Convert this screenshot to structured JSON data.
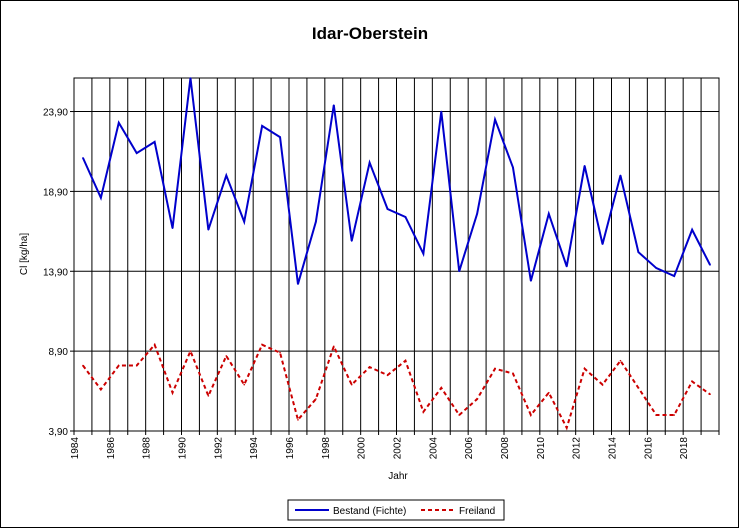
{
  "chart_data": {
    "type": "line",
    "title": "Idar-Oberstein",
    "xlabel": "Jahr",
    "ylabel": "Cl [kg/ha]",
    "ylim": [
      3.9,
      26.0
    ],
    "yticks": [
      3.9,
      8.9,
      13.9,
      18.9,
      23.9
    ],
    "ytick_labels": [
      "3,90",
      "8,90",
      "13,90",
      "18,90",
      "23,90"
    ],
    "xlim": [
      1984,
      2019
    ],
    "xtick_labels": [
      "1984",
      "1986",
      "1988",
      "1990",
      "1992",
      "1994",
      "1996",
      "1998",
      "2000",
      "2002",
      "2004",
      "2006",
      "2008",
      "2010",
      "2012",
      "2014",
      "2016",
      "2018"
    ],
    "grid": true,
    "legend_position": "bottom",
    "x": [
      1984,
      1985,
      1986,
      1987,
      1988,
      1989,
      1990,
      1991,
      1992,
      1993,
      1994,
      1995,
      1996,
      1997,
      1998,
      1999,
      2000,
      2001,
      2002,
      2003,
      2004,
      2005,
      2006,
      2007,
      2008,
      2009,
      2010,
      2011,
      2012,
      2013,
      2014,
      2015,
      2016,
      2017,
      2018,
      2019
    ],
    "series": [
      {
        "name": "Bestand (Fichte)",
        "color": "#0000cc",
        "style": "solid",
        "values": [
          21.0,
          18.5,
          23.2,
          21.3,
          22.0,
          16.6,
          26.0,
          16.5,
          19.9,
          17.0,
          23.0,
          22.3,
          13.1,
          17.0,
          24.3,
          15.8,
          20.7,
          17.8,
          17.3,
          15.0,
          23.9,
          13.9,
          17.5,
          23.4,
          20.4,
          13.3,
          17.5,
          14.2,
          20.5,
          15.6,
          19.9,
          15.1,
          14.1,
          13.6,
          16.5,
          14.3
        ]
      },
      {
        "name": "Freiland",
        "color": "#cc0000",
        "style": "dashed",
        "values": [
          8.0,
          6.5,
          8.0,
          8.0,
          9.3,
          6.3,
          8.9,
          6.1,
          8.6,
          6.8,
          9.3,
          8.8,
          4.6,
          5.9,
          9.2,
          6.8,
          7.9,
          7.4,
          8.3,
          5.1,
          6.6,
          4.9,
          5.9,
          7.8,
          7.5,
          4.9,
          6.3,
          4.1,
          7.8,
          6.8,
          8.3,
          6.6,
          4.9,
          4.9,
          7.0,
          6.2
        ]
      }
    ]
  }
}
